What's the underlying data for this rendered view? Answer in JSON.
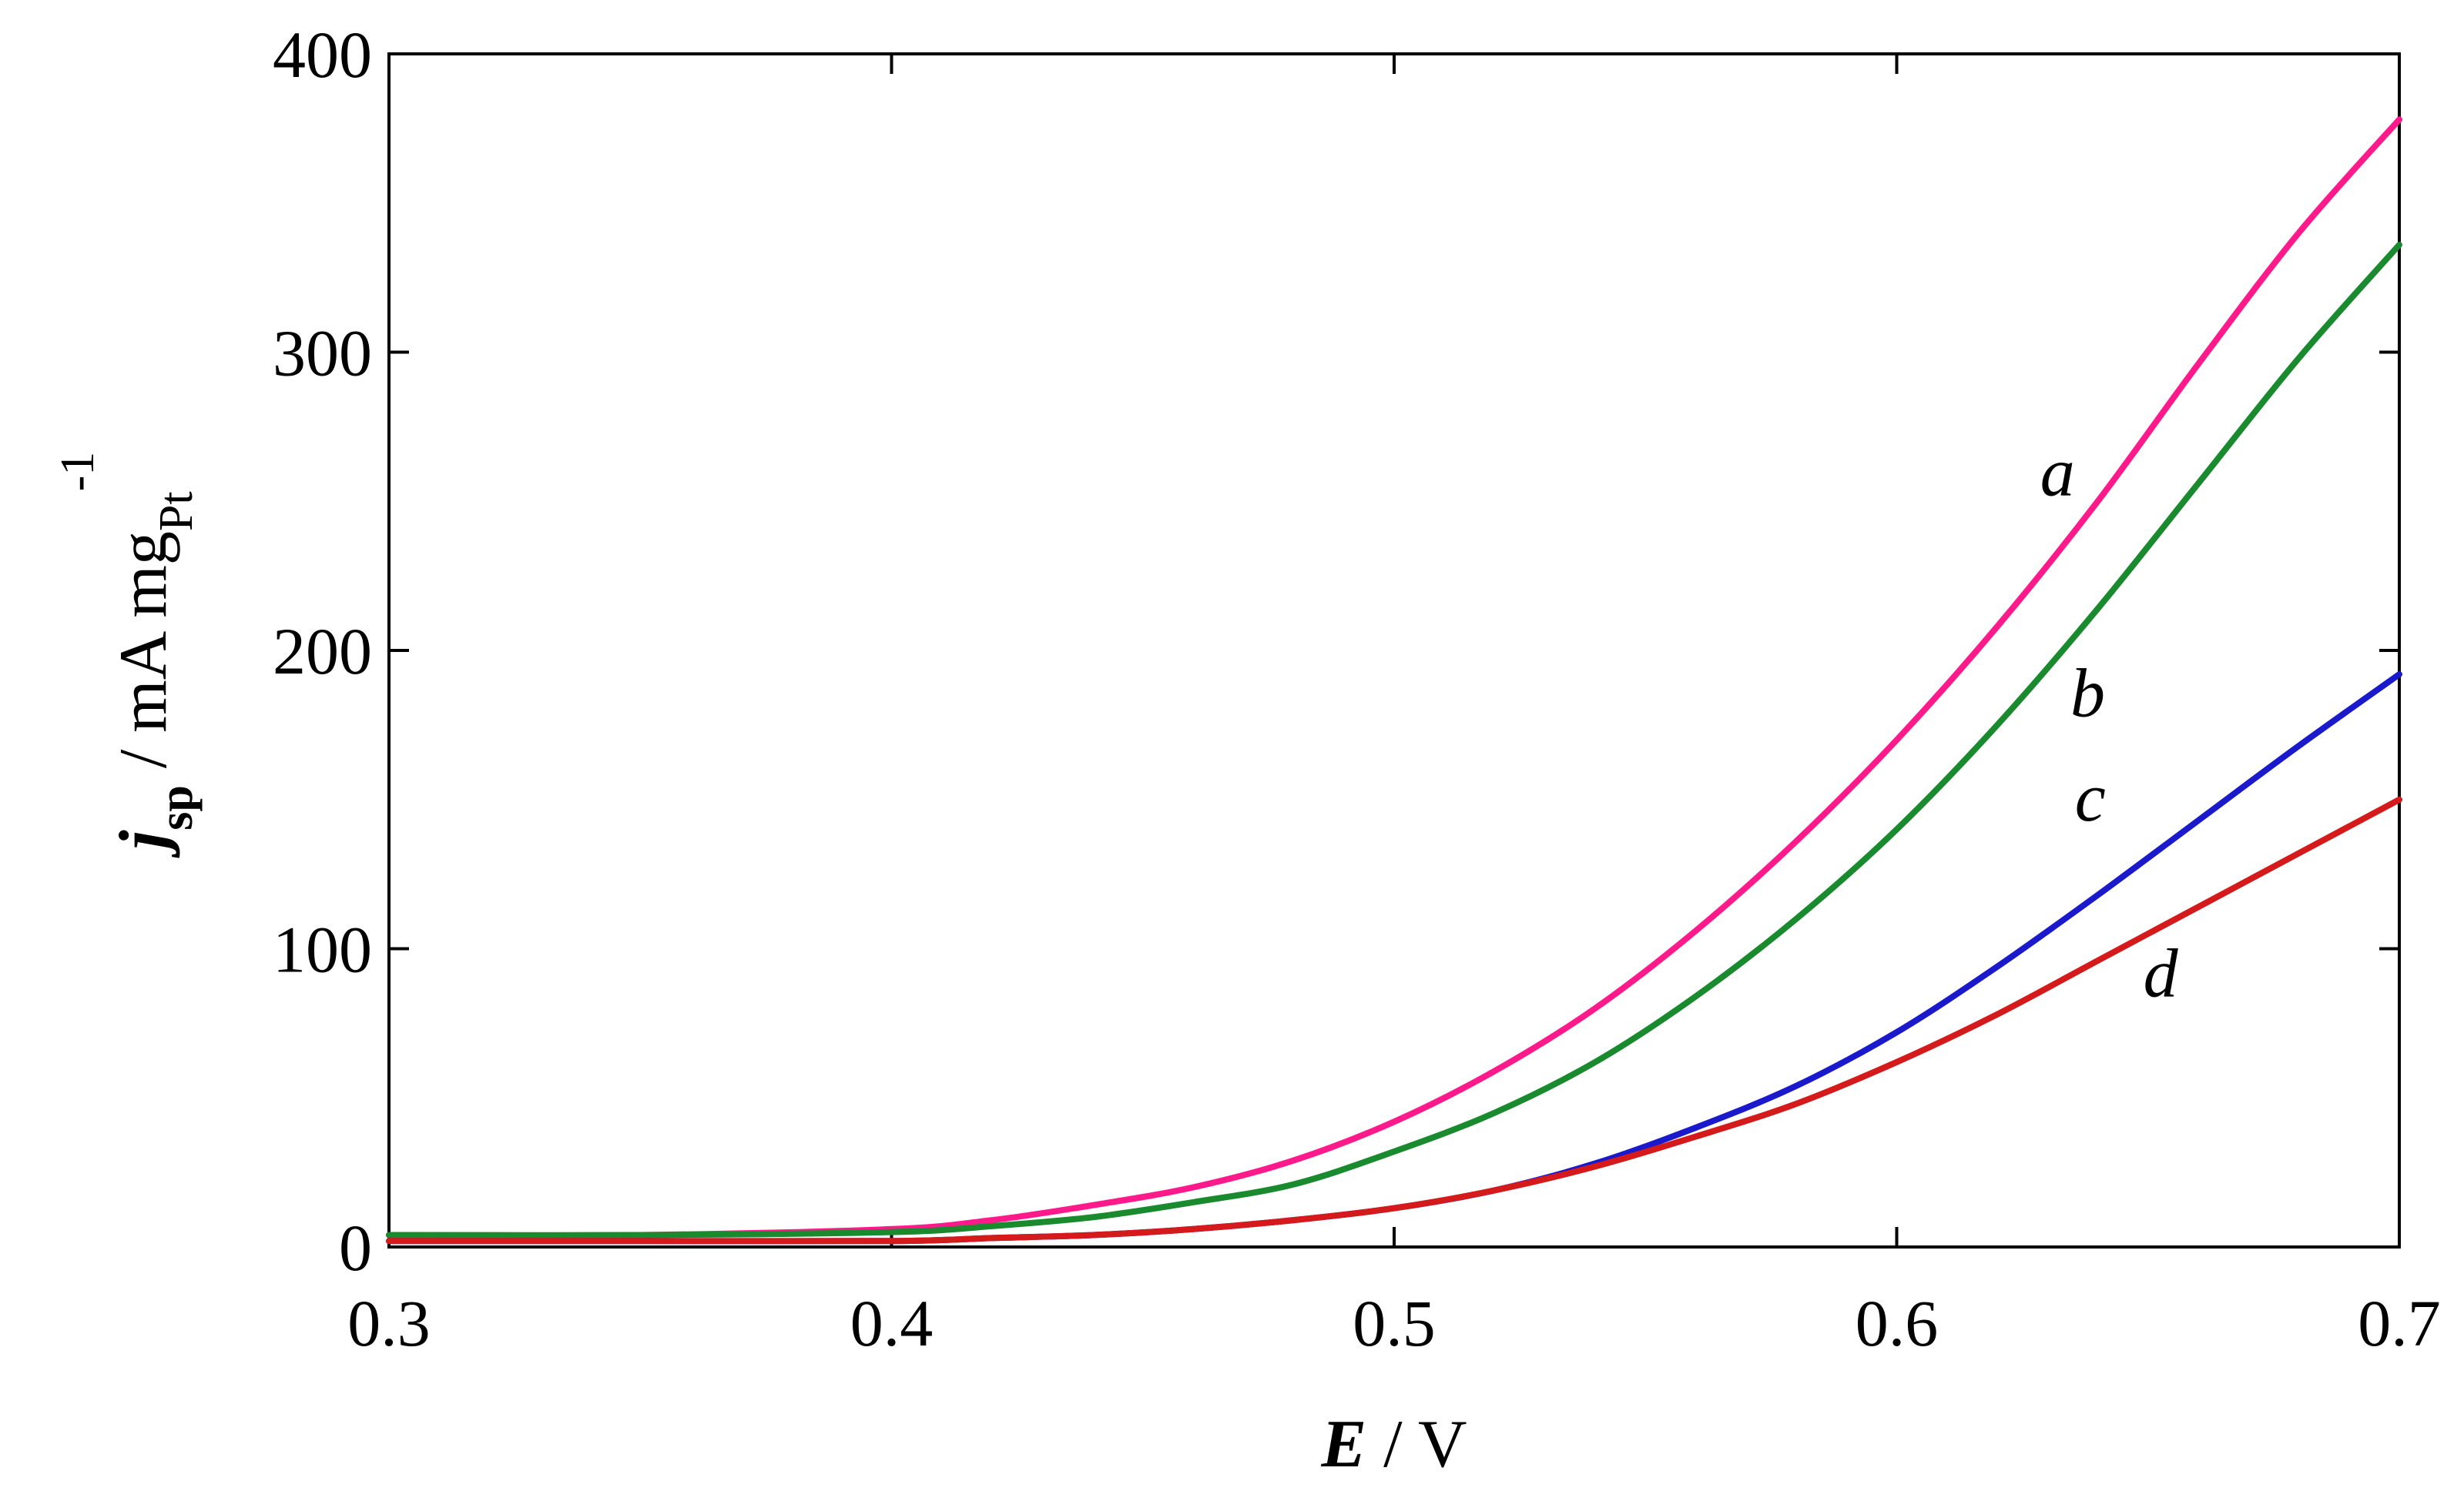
{
  "chart_data": {
    "type": "line",
    "xlabel": {
      "symbol": "E",
      "rest": " / V"
    },
    "ylabel": {
      "symbol": "j",
      "symbol_sub": "sp",
      "rest": " / mA mg",
      "unit_sub": "Pt",
      "unit_sup": "-1"
    },
    "xlim": [
      0.3,
      0.7
    ],
    "ylim": [
      0,
      400
    ],
    "x_ticks": [
      0.3,
      0.4,
      0.5,
      0.6,
      0.7
    ],
    "x_tick_labels": [
      "0.3",
      "0.4",
      "0.5",
      "0.6",
      "0.7"
    ],
    "y_ticks": [
      0,
      100,
      200,
      300,
      400
    ],
    "y_tick_labels": [
      "0",
      "100",
      "200",
      "300",
      "400"
    ],
    "grid": false,
    "series": [
      {
        "name": "a",
        "color": "#ff1a8c",
        "x": [
          0.3,
          0.35,
          0.4,
          0.42,
          0.44,
          0.46,
          0.48,
          0.5,
          0.52,
          0.54,
          0.56,
          0.58,
          0.6,
          0.62,
          0.64,
          0.66,
          0.68,
          0.7
        ],
        "y": [
          4,
          4,
          6,
          9,
          14,
          20,
          29,
          42,
          59,
          80,
          106,
          136,
          170,
          208,
          250,
          296,
          340,
          378
        ]
      },
      {
        "name": "b",
        "color": "#1a8a2e",
        "x": [
          0.3,
          0.35,
          0.4,
          0.42,
          0.44,
          0.46,
          0.48,
          0.5,
          0.52,
          0.54,
          0.56,
          0.58,
          0.6,
          0.62,
          0.64,
          0.66,
          0.68,
          0.7
        ],
        "y": [
          4,
          4,
          5,
          7,
          10,
          15,
          21,
          32,
          45,
          62,
          84,
          110,
          140,
          175,
          214,
          256,
          298,
          336
        ]
      },
      {
        "name": "c",
        "color": "#1a1acc",
        "x": [
          0.3,
          0.35,
          0.4,
          0.42,
          0.44,
          0.46,
          0.48,
          0.5,
          0.52,
          0.54,
          0.56,
          0.58,
          0.6,
          0.62,
          0.64,
          0.66,
          0.68,
          0.7
        ],
        "y": [
          2,
          2,
          2,
          3,
          4,
          6,
          9,
          13,
          19,
          28,
          40,
          54,
          72,
          94,
          118,
          143,
          168,
          192
        ]
      },
      {
        "name": "d",
        "color": "#d41a1a",
        "x": [
          0.3,
          0.35,
          0.4,
          0.42,
          0.44,
          0.46,
          0.48,
          0.5,
          0.52,
          0.54,
          0.56,
          0.58,
          0.6,
          0.62,
          0.64,
          0.66,
          0.68,
          0.7
        ],
        "y": [
          2,
          2,
          2,
          3,
          4,
          6,
          9,
          13,
          19,
          27,
          37,
          48,
          62,
          78,
          96,
          114,
          132,
          150
        ]
      }
    ],
    "annotations": [
      {
        "text": "a",
        "x": 0.632,
        "y": 252
      },
      {
        "text": "b",
        "x": 0.638,
        "y": 178
      },
      {
        "text": "c",
        "x": 0.6385,
        "y": 143
      },
      {
        "text": "d",
        "x": 0.6525,
        "y": 84
      }
    ]
  }
}
